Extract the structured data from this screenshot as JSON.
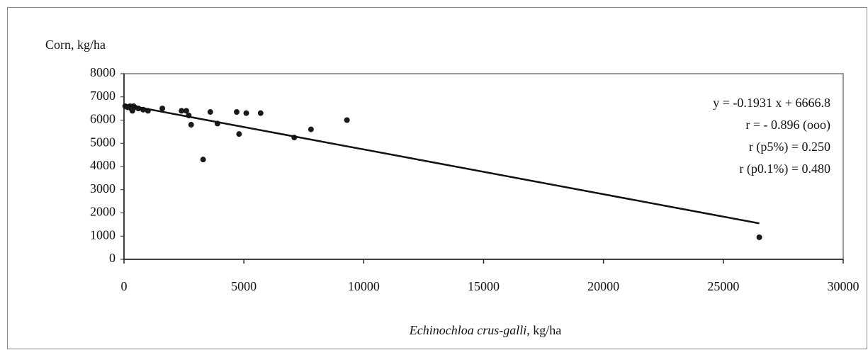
{
  "chart_data": {
    "type": "scatter",
    "y_label": "Corn, kg/ha",
    "x_label": {
      "species": "Echinochloa crus-galli",
      "unit": ", kg/ha"
    },
    "x": [
      50,
      150,
      250,
      300,
      350,
      400,
      450,
      600,
      800,
      1000,
      1600,
      2400,
      2600,
      2700,
      2800,
      3300,
      3600,
      3900,
      4700,
      4800,
      5100,
      5700,
      7100,
      7800,
      9300,
      26500
    ],
    "values": [
      6600,
      6550,
      6600,
      6500,
      6400,
      6600,
      6550,
      6500,
      6450,
      6400,
      6500,
      6400,
      6400,
      6200,
      5800,
      4300,
      6350,
      5850,
      6350,
      5400,
      6300,
      6300,
      5250,
      5600,
      6000,
      950
    ],
    "color": "#1a1a1a",
    "trendline": {
      "slope": -0.1931,
      "intercept": 6666.8,
      "x_range": [
        0,
        26500
      ]
    },
    "annotations": [
      "y = -0.1931 x + 6666.8",
      "r = - 0.896 (ooo)",
      "r (p5%) = 0.250",
      "r (p0.1%) = 0.480"
    ],
    "xlim": [
      0,
      30000
    ],
    "xticks": [
      0,
      5000,
      10000,
      15000,
      20000,
      25000,
      30000
    ],
    "ylim": [
      0,
      8000
    ],
    "yticks": [
      0,
      1000,
      2000,
      3000,
      4000,
      5000,
      6000,
      7000,
      8000
    ],
    "grid": false
  }
}
